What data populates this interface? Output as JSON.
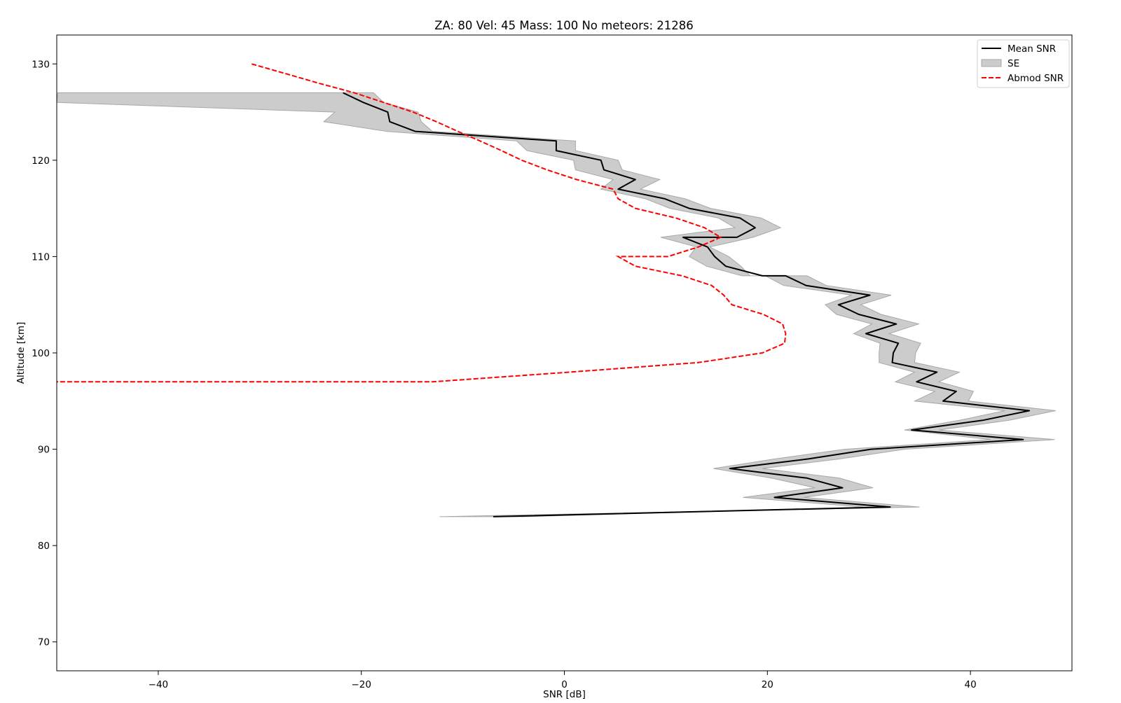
{
  "chart_data": {
    "type": "line",
    "title": "ZA: 80 Vel: 45 Mass: 100 No meteors: 21286",
    "xlabel": "SNR [dB]",
    "ylabel": "Altitude [km]",
    "xlim": [
      -50,
      50
    ],
    "ylim": [
      67,
      133
    ],
    "xticks": [
      -40,
      -20,
      0,
      20,
      40
    ],
    "yticks": [
      70,
      80,
      90,
      100,
      110,
      120,
      130
    ],
    "xtick_labels": [
      "−40",
      "−20",
      "0",
      "20",
      "40"
    ],
    "ytick_labels": [
      "70",
      "80",
      "90",
      "100",
      "110",
      "120",
      "130"
    ],
    "grid": false,
    "legend_position": "top-right",
    "legend": [
      {
        "label": "Mean SNR",
        "style": "line",
        "color": "#000000"
      },
      {
        "label": "SE",
        "style": "fill",
        "color": "#cccccc"
      },
      {
        "label": "Abmod SNR",
        "style": "dashed",
        "color": "#ff0000"
      }
    ],
    "series": [
      {
        "name": "Mean SNR",
        "color": "#000000",
        "points": [
          [
            -21.8,
            127
          ],
          [
            -19.8,
            126
          ],
          [
            -17.4,
            125
          ],
          [
            -17.2,
            124
          ],
          [
            -14.7,
            123
          ],
          [
            -0.8,
            122
          ],
          [
            -0.8,
            121
          ],
          [
            3.6,
            120
          ],
          [
            3.9,
            119
          ],
          [
            7.0,
            118
          ],
          [
            5.3,
            117
          ],
          [
            9.9,
            116
          ],
          [
            12.3,
            115
          ],
          [
            17.3,
            114
          ],
          [
            18.8,
            113
          ],
          [
            17.0,
            112
          ],
          [
            11.7,
            112
          ],
          [
            14.1,
            111
          ],
          [
            14.8,
            110
          ],
          [
            15.9,
            109
          ],
          [
            19.5,
            108
          ],
          [
            21.8,
            108
          ],
          [
            23.8,
            107
          ],
          [
            30.1,
            106
          ],
          [
            27.0,
            105
          ],
          [
            29.0,
            104
          ],
          [
            32.7,
            103
          ],
          [
            29.7,
            102
          ],
          [
            32.9,
            101
          ],
          [
            32.4,
            100
          ],
          [
            32.3,
            99
          ],
          [
            36.7,
            98
          ],
          [
            34.7,
            97
          ],
          [
            38.6,
            96
          ],
          [
            37.3,
            95
          ],
          [
            45.8,
            94
          ],
          [
            41.2,
            93
          ],
          [
            34.2,
            92
          ],
          [
            45.2,
            91
          ],
          [
            30.2,
            90
          ],
          [
            24.1,
            89
          ],
          [
            16.3,
            88
          ],
          [
            23.9,
            87
          ],
          [
            27.4,
            86
          ],
          [
            20.7,
            85
          ],
          [
            32.1,
            84
          ],
          [
            -7.0,
            83
          ]
        ]
      },
      {
        "name": "SE",
        "color": "#cccccc",
        "upper": [
          [
            -18.8,
            127
          ],
          [
            -17.8,
            126
          ],
          [
            -14.4,
            125
          ],
          [
            -14.1,
            124
          ],
          [
            -13.0,
            123
          ],
          [
            1.1,
            122
          ],
          [
            1.1,
            121
          ],
          [
            5.3,
            120
          ],
          [
            5.7,
            119
          ],
          [
            9.4,
            118
          ],
          [
            7.5,
            117
          ],
          [
            11.9,
            116
          ],
          [
            14.4,
            115
          ],
          [
            19.4,
            114
          ],
          [
            21.3,
            113
          ],
          [
            18.6,
            112
          ],
          [
            14.3,
            111
          ],
          [
            16.2,
            110
          ],
          [
            17.4,
            109
          ],
          [
            18.3,
            108
          ],
          [
            23.9,
            108
          ],
          [
            25.8,
            107
          ],
          [
            32.2,
            106
          ],
          [
            29.2,
            105
          ],
          [
            31.2,
            104
          ],
          [
            34.9,
            103
          ],
          [
            32.0,
            102
          ],
          [
            35.1,
            101
          ],
          [
            34.6,
            100
          ],
          [
            34.5,
            99
          ],
          [
            38.9,
            98
          ],
          [
            36.9,
            97
          ],
          [
            40.3,
            96
          ],
          [
            39.8,
            95
          ],
          [
            48.4,
            94
          ],
          [
            43.8,
            93
          ],
          [
            36.9,
            92
          ],
          [
            48.3,
            91
          ],
          [
            33.5,
            90
          ],
          [
            27.2,
            89
          ],
          [
            19.5,
            88
          ],
          [
            27.1,
            87
          ],
          [
            30.4,
            86
          ],
          [
            23.6,
            85
          ],
          [
            35.0,
            84
          ],
          [
            -12.3,
            83
          ]
        ],
        "lower": [
          [
            -27.0,
            127
          ],
          [
            -49.9,
            127
          ],
          [
            -50.0,
            126
          ],
          [
            -22.6,
            125
          ],
          [
            -23.7,
            124
          ],
          [
            -17.5,
            123
          ],
          [
            -4.7,
            122
          ],
          [
            -3.7,
            121
          ],
          [
            0.9,
            120
          ],
          [
            1.1,
            119
          ],
          [
            4.8,
            118
          ],
          [
            3.6,
            117
          ],
          [
            8.0,
            116
          ],
          [
            10.4,
            115
          ],
          [
            15.2,
            114
          ],
          [
            16.8,
            113
          ],
          [
            9.5,
            112
          ],
          [
            13.0,
            111
          ],
          [
            12.3,
            110
          ],
          [
            14.0,
            109
          ],
          [
            17.5,
            108
          ],
          [
            19.8,
            108
          ],
          [
            21.6,
            107
          ],
          [
            28.3,
            106
          ],
          [
            25.7,
            105
          ],
          [
            26.8,
            104
          ],
          [
            30.3,
            103
          ],
          [
            28.5,
            102
          ],
          [
            31.1,
            101
          ],
          [
            31.0,
            100
          ],
          [
            31.0,
            99
          ],
          [
            34.5,
            98
          ],
          [
            32.6,
            97
          ],
          [
            36.5,
            96
          ],
          [
            34.5,
            95
          ],
          [
            43.4,
            94
          ],
          [
            38.9,
            93
          ],
          [
            33.5,
            92
          ],
          [
            42.0,
            91
          ],
          [
            27.6,
            90
          ],
          [
            20.8,
            89
          ],
          [
            14.7,
            88
          ],
          [
            20.4,
            87
          ],
          [
            24.7,
            86
          ],
          [
            17.6,
            85
          ],
          [
            29.5,
            84
          ],
          [
            -4.0,
            83
          ]
        ]
      },
      {
        "name": "Abmod SNR",
        "color": "#ff0000",
        "points": [
          [
            -30.8,
            130
          ],
          [
            -27.5,
            129
          ],
          [
            -24.2,
            128
          ],
          [
            -20.7,
            127
          ],
          [
            -17.8,
            126
          ],
          [
            -14.9,
            125
          ],
          [
            -12.6,
            124
          ],
          [
            -10.5,
            123
          ],
          [
            -8.3,
            122
          ],
          [
            -6.2,
            121
          ],
          [
            -4.2,
            120
          ],
          [
            -1.7,
            119
          ],
          [
            1.2,
            118
          ],
          [
            4.8,
            117
          ],
          [
            5.3,
            116
          ],
          [
            7.0,
            115
          ],
          [
            11.0,
            114
          ],
          [
            13.8,
            113
          ],
          [
            15.4,
            112
          ],
          [
            13.2,
            111
          ],
          [
            10.2,
            110
          ],
          [
            5.3,
            110
          ],
          [
            7.0,
            109
          ],
          [
            11.6,
            108
          ],
          [
            14.5,
            107
          ],
          [
            15.7,
            106
          ],
          [
            16.5,
            105
          ],
          [
            19.6,
            104
          ],
          [
            21.5,
            103
          ],
          [
            21.8,
            102
          ],
          [
            21.7,
            101
          ],
          [
            19.5,
            100
          ],
          [
            13.2,
            99
          ],
          [
            0.5,
            98
          ],
          [
            -13.0,
            97
          ],
          [
            -21.3,
            97
          ],
          [
            -50.0,
            97
          ]
        ]
      }
    ]
  }
}
